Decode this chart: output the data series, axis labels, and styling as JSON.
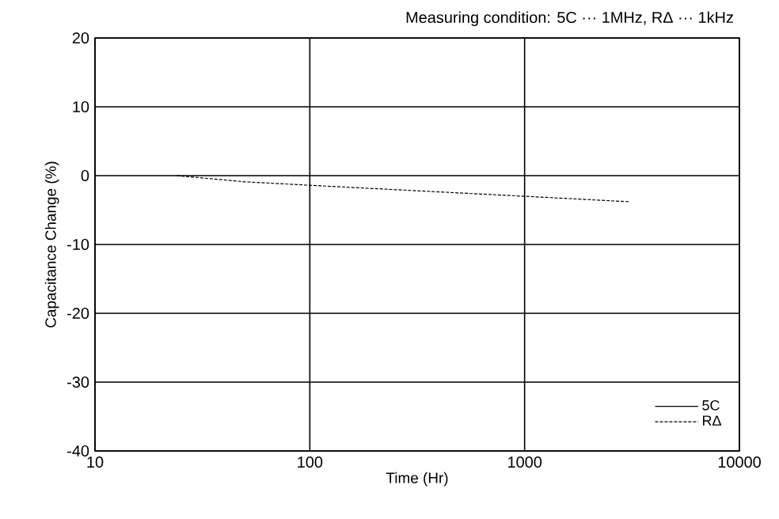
{
  "chart_data": {
    "type": "line",
    "title": "Measuring condition: 5C ··· 1MHz, RΔ ··· 1kHz",
    "xlabel": "Time (Hr)",
    "ylabel": "Capacitance Change (%)",
    "log": "x",
    "xlim": [
      10,
      10000
    ],
    "xticks": [
      10,
      100,
      1000,
      10000
    ],
    "ylim": [
      -40,
      20
    ],
    "yticks": [
      -40,
      -30,
      -20,
      -10,
      0,
      10,
      20
    ],
    "grid": true,
    "legend": "bottom right",
    "marker": "none",
    "series": [
      {
        "name": "5C",
        "color": "#000000",
        "line_style": "solid"
      },
      {
        "name": "RΔ",
        "color": "#000000",
        "line_style": "dashed",
        "x": [
          24,
          50,
          100,
          1000,
          3100
        ],
        "values": [
          0,
          -0.9,
          -1.4,
          -3.0,
          -3.8
        ]
      }
    ]
  }
}
